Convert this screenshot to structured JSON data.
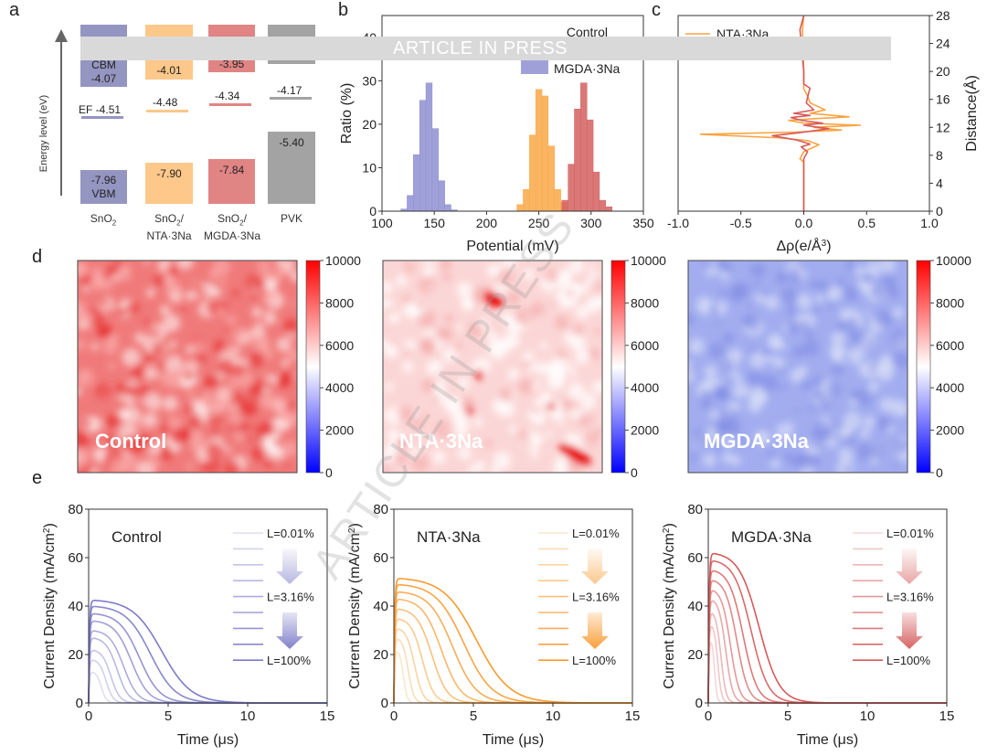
{
  "panel_labels": {
    "a": "a",
    "b": "b",
    "c": "c",
    "d": "d",
    "e": "e"
  },
  "watermark": "ARTICLE IN PRESS",
  "banner_text": "ARTICLE IN PRESS",
  "colors": {
    "purple": "#8585c6",
    "orange": "#f9a64a",
    "red": "#d86565",
    "gray": "#9e9e9e"
  },
  "chart_data": [
    {
      "type": "energy-level diagram",
      "ylabel": "Energy level (eV)",
      "columns": [
        {
          "label": "SnO",
          "sub": "2",
          "label2": "",
          "cbm": "-4.07",
          "cbm_text": "CBM",
          "ef": "-4.51",
          "ef_text": "EF",
          "vbm": "-7.96",
          "vbm_text": "VBM",
          "color": "#9595c2"
        },
        {
          "label": "SnO",
          "sub": "2",
          "label2": "/",
          "label3": "NTA·3Na",
          "cbm": "-4.01",
          "ef": "-4.48",
          "vbm": "-7.90",
          "color": "#fdc88a"
        },
        {
          "label": "SnO",
          "sub": "2",
          "label2": "/",
          "label3": "MGDA·3Na",
          "cbm": "-3.95",
          "ef": "-4.34",
          "vbm": "-7.84",
          "color": "#e08484"
        },
        {
          "label": "PVK",
          "cbm": "",
          "ef": "-4.17",
          "vbm": "-5.40",
          "color": "#a3a3a3"
        }
      ]
    },
    {
      "type": "bar",
      "xlabel": "Potential (mV)",
      "ylabel": "Ratio (%)",
      "xlim": [
        100,
        350
      ],
      "ylim": [
        0,
        45
      ],
      "xticks": [
        "100",
        "150",
        "200",
        "250",
        "300",
        "350"
      ],
      "yticks": [
        "0",
        "10",
        "20",
        "30",
        "40"
      ],
      "legend": [
        "Control",
        "MGDA·3Na"
      ],
      "legend_position": "top-right",
      "series": [
        {
          "color": "#8f8fd2",
          "bin_width": 6,
          "x": [
            121,
            127,
            133,
            139,
            145,
            151,
            157,
            163,
            169
          ],
          "values": [
            0.5,
            3.6,
            13,
            25.5,
            29.5,
            19,
            7,
            1.5,
            0.3
          ]
        },
        {
          "color": "#f9a848",
          "bin_width": 6,
          "x": [
            232,
            238,
            244,
            250,
            256,
            262,
            268,
            274
          ],
          "values": [
            1.5,
            5,
            17.5,
            28,
            26.5,
            15,
            5,
            2
          ]
        },
        {
          "color": "#d46060",
          "bin_width": 6,
          "x": [
            275,
            281,
            287,
            293,
            299,
            305,
            311,
            317
          ],
          "values": [
            2.5,
            10.8,
            23.5,
            29.5,
            21,
            9,
            2.5,
            1
          ]
        }
      ]
    },
    {
      "type": "line",
      "xlabel": "Δρ(e/Å",
      "xlabel_sup": "3",
      "xlabel_end": ")",
      "ylabel": "Distance(Å)",
      "xlim": [
        -1.0,
        1.0
      ],
      "ylim": [
        0,
        28
      ],
      "xticks": [
        "-1.0",
        "-0.5",
        "0.0",
        "0.5",
        "1.0"
      ],
      "yticks": [
        "0",
        "4",
        "8",
        "12",
        "16",
        "20",
        "24",
        "28"
      ],
      "legend": [
        "NTA·3Na"
      ],
      "series": [
        {
          "color": "#f9a340",
          "points": [
            [
              0,
              0
            ],
            [
              0,
              7
            ],
            [
              -0.03,
              7.5
            ],
            [
              0,
              8.5
            ],
            [
              0.12,
              9.5
            ],
            [
              0.03,
              10.1
            ],
            [
              -0.2,
              10.5
            ],
            [
              -0.82,
              11
            ],
            [
              -0.1,
              11.3
            ],
            [
              0.3,
              11.6
            ],
            [
              0.08,
              12
            ],
            [
              0.45,
              12.3
            ],
            [
              0.0,
              12.6
            ],
            [
              -0.12,
              13
            ],
            [
              0.05,
              13.2
            ],
            [
              0.36,
              13.5
            ],
            [
              0.05,
              14
            ],
            [
              0.17,
              14.5
            ],
            [
              0.05,
              15.5
            ],
            [
              0.03,
              16.5
            ],
            [
              0,
              17.5
            ],
            [
              0,
              18
            ],
            [
              0,
              20
            ],
            [
              -0.01,
              26
            ],
            [
              0,
              28
            ]
          ]
        },
        {
          "color": "#d85a5a",
          "points": [
            [
              0,
              0
            ],
            [
              0,
              7.5
            ],
            [
              0.03,
              8.5
            ],
            [
              -0.02,
              9.2
            ],
            [
              0.05,
              9.6
            ],
            [
              -0.06,
              10.2
            ],
            [
              -0.25,
              10.8
            ],
            [
              -0.05,
              11.2
            ],
            [
              0.2,
              11.8
            ],
            [
              0.0,
              12.3
            ],
            [
              0.15,
              12.6
            ],
            [
              -0.02,
              13
            ],
            [
              -0.1,
              13.4
            ],
            [
              0.05,
              13.7
            ],
            [
              -0.08,
              14
            ],
            [
              0.08,
              14.5
            ],
            [
              0.02,
              15.5
            ],
            [
              0.04,
              17
            ],
            [
              0.05,
              17.6
            ],
            [
              0,
              18.2
            ],
            [
              0,
              20
            ],
            [
              -0.03,
              26
            ],
            [
              0,
              28
            ]
          ]
        }
      ]
    },
    {
      "type": "heatmap",
      "colorbar_ticks": [
        "10000",
        "8000",
        "6000",
        "4000",
        "2000",
        "0"
      ],
      "clim": [
        0,
        10000
      ],
      "maps": [
        {
          "label": "Control"
        },
        {
          "label": "NTA·3Na"
        },
        {
          "label": "MGDA·3Na"
        }
      ]
    },
    {
      "type": "line",
      "xlabel": "Time (μs)",
      "ylabel": "Current Density (mA/cm",
      "ylabel_sup": "2",
      "ylabel_end": ")",
      "xlim": [
        0,
        15
      ],
      "ylim": [
        0,
        80
      ],
      "xticks": [
        "0",
        "5",
        "10",
        "15"
      ],
      "yticks": [
        "0",
        "20",
        "40",
        "60",
        "80"
      ],
      "legend_labels": [
        "L=0.01%",
        "L=3.16%",
        "L=100%"
      ],
      "plots": [
        {
          "title": "Control",
          "color": "#7b7bc8",
          "peaks": [
            13,
            18,
            22,
            27,
            30,
            34,
            37,
            40,
            42.5
          ],
          "decay_time_us": [
            0.8,
            1.1,
            1.4,
            1.8,
            2.2,
            2.7,
            3.2,
            3.9,
            4.6
          ]
        },
        {
          "title": "NTA·3Na",
          "color": "#f99a30",
          "peaks": [
            22,
            27,
            31,
            35,
            39,
            43,
            46,
            49,
            51.5
          ],
          "decay_time_us": [
            0.6,
            0.9,
            1.3,
            1.8,
            2.4,
            3.0,
            3.7,
            4.4,
            5.2
          ]
        },
        {
          "title": "MGDA·3Na",
          "color": "#d65a5a",
          "peaks": [
            27,
            33,
            38,
            43,
            47,
            51,
            55,
            59,
            62
          ],
          "decay_time_us": [
            0.4,
            0.6,
            0.8,
            1.1,
            1.4,
            1.8,
            2.2,
            2.7,
            3.2
          ]
        }
      ]
    }
  ]
}
